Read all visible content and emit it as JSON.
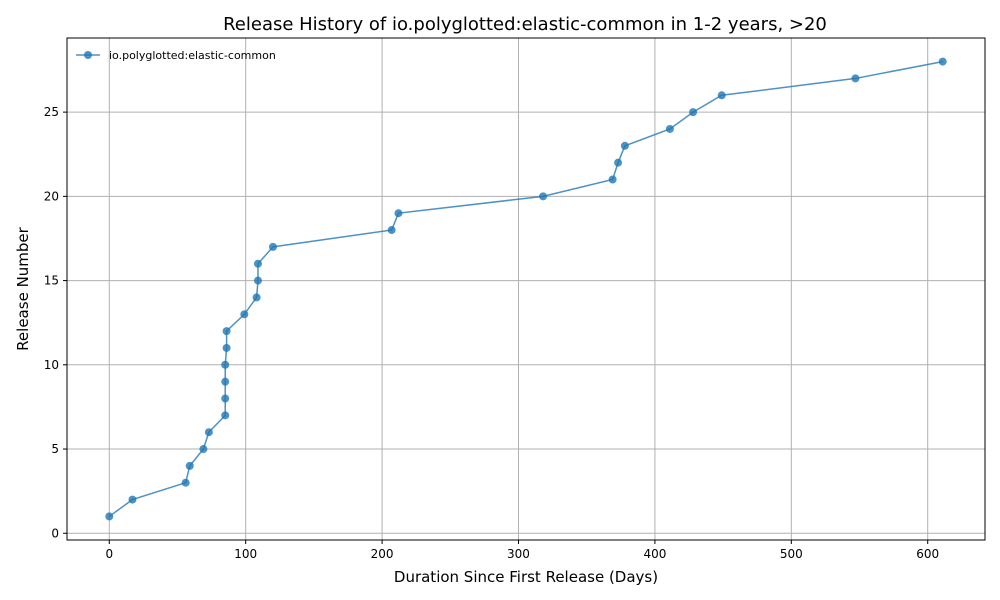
{
  "chart_data": {
    "type": "line",
    "title": "Release History of io.polyglotted:elastic-common in 1-2 years, >20",
    "xlabel": "Duration Since First Release (Days)",
    "ylabel": "Release Number",
    "xlim": [
      -31,
      642
    ],
    "ylim": [
      -0.4,
      29.4
    ],
    "xticks": [
      0,
      100,
      200,
      300,
      400,
      500,
      600
    ],
    "yticks": [
      0,
      5,
      10,
      15,
      20,
      25
    ],
    "grid": true,
    "legend_position": "top-left",
    "series": [
      {
        "name": "io.polyglotted:elastic-common",
        "color": "#1f77b4",
        "marker": "circle",
        "x": [
          0,
          17,
          56,
          59,
          69,
          73,
          85,
          85,
          85,
          85,
          86,
          86,
          99,
          108,
          109,
          109,
          120,
          207,
          212,
          318,
          369,
          373,
          378,
          411,
          428,
          449,
          547,
          611
        ],
        "y": [
          1,
          2,
          3,
          4,
          5,
          6,
          7,
          8,
          9,
          10,
          11,
          12,
          13,
          14,
          15,
          16,
          17,
          18,
          19,
          20,
          21,
          22,
          23,
          24,
          25,
          26,
          27,
          28
        ]
      }
    ]
  }
}
